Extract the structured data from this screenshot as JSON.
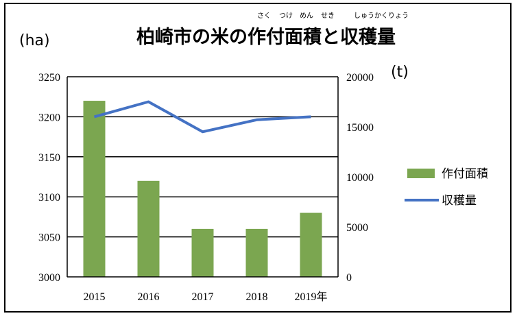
{
  "chart_data": {
    "type": "bar+line",
    "title": "柏崎市の米の作付面積と収穫量",
    "title_ruby": [
      {
        "text": "さく",
        "base": "作"
      },
      {
        "text": "つけ",
        "base": "付"
      },
      {
        "text": "めん",
        "base": "面"
      },
      {
        "text": "せき",
        "base": "積"
      },
      {
        "text": "しゅうかくりょう",
        "base": "収穫量"
      }
    ],
    "categories": [
      "2015",
      "2016",
      "2017",
      "2018",
      "2019年"
    ],
    "left_axis": {
      "unit": "(ha)",
      "min": 3000,
      "max": 3250,
      "ticks": [
        3000,
        3050,
        3100,
        3150,
        3200,
        3250
      ]
    },
    "right_axis": {
      "unit": "(t)",
      "min": 0,
      "max": 20000,
      "ticks": [
        0,
        5000,
        10000,
        15000,
        20000
      ]
    },
    "series": [
      {
        "name": "作付面積",
        "kind": "bar",
        "axis": "left",
        "color": "#7ba650",
        "values": [
          3220,
          3120,
          3060,
          3060,
          3080
        ]
      },
      {
        "name": "収穫量",
        "kind": "line",
        "axis": "right",
        "color": "#4472c4",
        "values": [
          16000,
          17500,
          14500,
          15700,
          16000
        ]
      }
    ],
    "grid": true,
    "legend_position": "right"
  }
}
